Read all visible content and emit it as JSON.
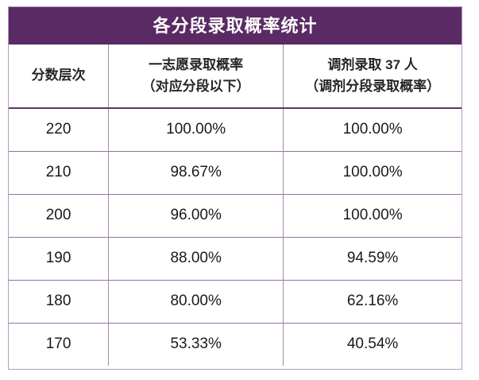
{
  "title": "各分段录取概率统计",
  "colors": {
    "title_bar_bg": "#5a2a64",
    "title_text": "#ffffff",
    "outer_border": "#b59cc3",
    "header_bottom_border": "#613467",
    "row_border": "#94719f",
    "column_border": "#a589b1",
    "body_text": "#1a1a1a"
  },
  "header": {
    "columns": [
      {
        "line1": "分数层次",
        "line2": ""
      },
      {
        "line1": "一志愿录取概率",
        "line2": "（对应分段以下）"
      },
      {
        "line1": "调剂录取 37 人",
        "line2": "（调剂分段录取概率）"
      }
    ]
  },
  "chart_data": {
    "type": "table",
    "title": "各分段录取概率统计",
    "columns": [
      "分数层次",
      "一志愿录取概率（对应分段以下）",
      "调剂录取 37 人（调剂分段录取概率）"
    ],
    "rows": [
      [
        "220",
        "100.00%",
        "100.00%"
      ],
      [
        "210",
        "98.67%",
        "100.00%"
      ],
      [
        "200",
        "96.00%",
        "100.00%"
      ],
      [
        "190",
        "88.00%",
        "94.59%"
      ],
      [
        "180",
        "80.00%",
        "62.16%"
      ],
      [
        "170",
        "53.33%",
        "40.54%"
      ]
    ],
    "notes": "调剂录取人数 = 37"
  }
}
